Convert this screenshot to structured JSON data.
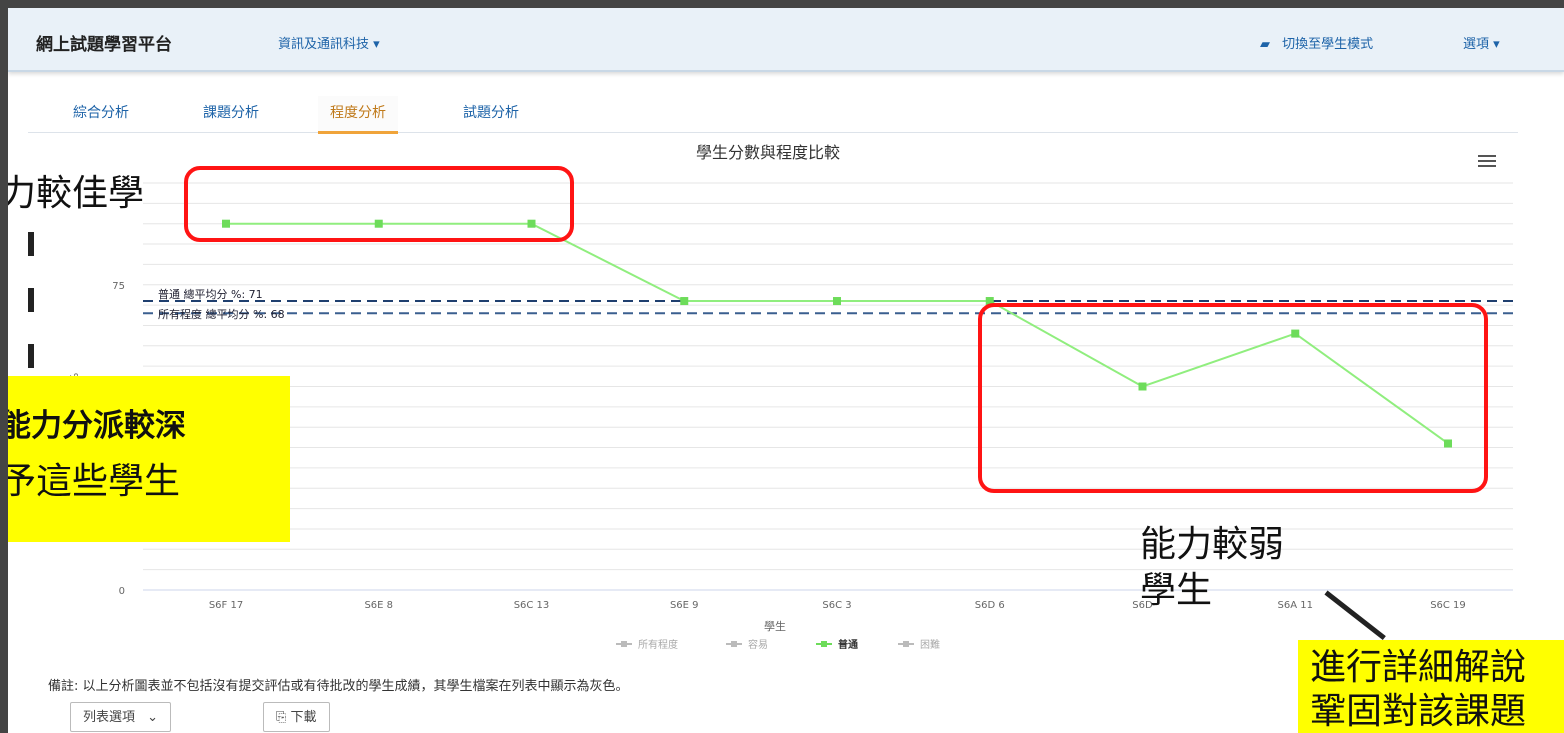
{
  "header": {
    "brand": "網上試題學習平台",
    "subject_menu": "資訊及通訊科技 ▾",
    "switch_mode": "切換至學生模式",
    "options_menu": "選項 ▾"
  },
  "tabs": [
    "綜合分析",
    "課題分析",
    "程度分析",
    "試題分析"
  ],
  "chart_data": {
    "type": "line",
    "title": "學生分數與程度比較",
    "xlabel": "學生",
    "ylabel": "%",
    "categories": [
      "S6F 17",
      "S6E 8",
      "S6C 13",
      "S6E 9",
      "S6C 3",
      "S6D 6",
      "S6D",
      "S6A 11",
      "S6C 19"
    ],
    "yticks": [
      "0",
      "75"
    ],
    "ylim": [
      0,
      100
    ],
    "series": [
      {
        "name": "普通",
        "values": [
          90,
          90,
          90,
          71,
          71,
          71,
          50,
          63,
          36
        ],
        "color": "#90ee7e"
      }
    ],
    "reference_lines": [
      {
        "label": "普通 總平均分 %: 71",
        "value": 71,
        "color": "#1f3f6f"
      },
      {
        "label": "所有程度 總平均分 %: 68",
        "value": 68,
        "color": "#3a5f8f"
      }
    ],
    "legend": [
      "所有程度",
      "容易",
      "普通",
      "困難"
    ],
    "legend_placement": "bottom",
    "grid": true
  },
  "note": "備註: 以上分析圖表並不包括沒有提交評估或有待批改的學生成績，其學生檔案在列表中顯示為灰色。",
  "buttons": {
    "list_options": "列表選項",
    "download": "下載"
  },
  "annotations": {
    "strong_students": "力較佳學",
    "weak_students_line1": "能力較弱",
    "weak_students_line2": "學生",
    "left_box_line1": "能力分派較深",
    "left_box_line2": "予這些學生",
    "right_box_line1": "進行詳細解說",
    "right_box_line2": "鞏固對該課題"
  },
  "colors": {
    "highlight_border": "#ff1414",
    "callout_bg": "#ffff00",
    "accent": "#1d63a8"
  }
}
